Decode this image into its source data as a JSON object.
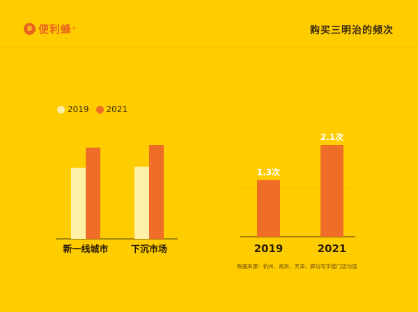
{
  "header": {
    "logo_text": "便利蜂",
    "logo_reg": "®",
    "page_title": "购买三明治的频次"
  },
  "colors": {
    "background": "#FFCC00",
    "series_2019": "#FFF0A8",
    "series_2021": "#EF6E27",
    "axis": "#4A3A10"
  },
  "chart_data": [
    {
      "type": "bar",
      "categories": [
        "新一线城市",
        "下沉市场"
      ],
      "series": [
        {
          "name": "2019",
          "values": [
            0.78,
            0.79
          ]
        },
        {
          "name": "2021",
          "values": [
            1.0,
            1.03
          ]
        }
      ],
      "legend": "top-left",
      "grid": false
    },
    {
      "type": "bar",
      "categories": [
        "2019",
        "2021"
      ],
      "values": [
        1.3,
        2.1
      ],
      "data_labels": [
        "1.3次",
        "2.1次"
      ],
      "ylim": [
        0,
        2.5
      ],
      "grid": true
    }
  ],
  "footnote": "数据来源：杭州、南京、天津、廊坊写字楼门店均值"
}
